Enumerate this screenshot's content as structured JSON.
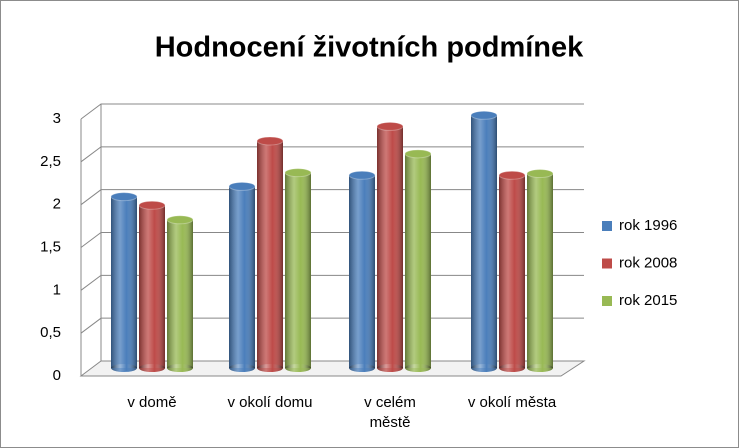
{
  "chart_data": {
    "type": "bar",
    "title": "Hodnocení životních podmínek",
    "categories": [
      "v domě",
      "v okolí domu",
      "v celém městě",
      "v okolí města"
    ],
    "series": [
      {
        "name": "rok 1996",
        "color": "#4a7ebb",
        "values": [
          2.0,
          2.12,
          2.25,
          2.95
        ]
      },
      {
        "name": "rok 2008",
        "color": "#be4b48",
        "values": [
          1.9,
          2.65,
          2.82,
          2.25
        ]
      },
      {
        "name": "rok 2015",
        "color": "#98b954",
        "values": [
          1.73,
          2.28,
          2.5,
          2.27
        ]
      }
    ],
    "ylim": [
      0,
      3
    ],
    "yticks": [
      0,
      {
        "value": 0.5,
        "label": "0,5"
      },
      1,
      {
        "value": 1.5,
        "label": "1,5"
      },
      2,
      {
        "value": 2.5,
        "label": "2,5"
      },
      3
    ],
    "grid": true,
    "legend": "right"
  }
}
